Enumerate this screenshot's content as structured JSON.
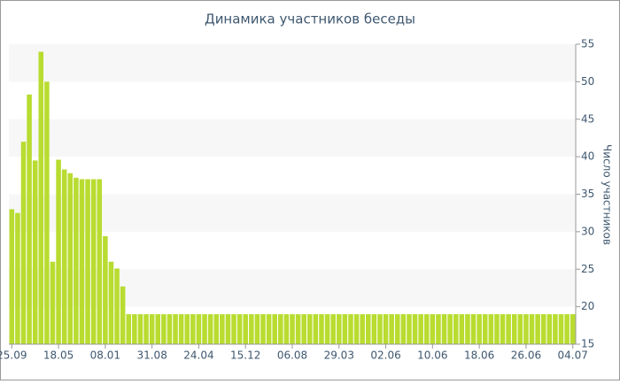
{
  "chart_data": {
    "type": "bar",
    "title": "Динамика участников беседы",
    "y_label": "Число участников",
    "categories": [
      "25.09",
      null,
      null,
      null,
      null,
      null,
      null,
      null,
      "18.05",
      null,
      null,
      null,
      null,
      null,
      null,
      null,
      "08.01",
      null,
      null,
      null,
      null,
      null,
      null,
      null,
      "31.08",
      null,
      null,
      null,
      null,
      null,
      null,
      null,
      "24.04",
      null,
      null,
      null,
      null,
      null,
      null,
      null,
      "15.12",
      null,
      null,
      null,
      null,
      null,
      null,
      null,
      "06.08",
      null,
      null,
      null,
      null,
      null,
      null,
      null,
      "29.03",
      null,
      null,
      null,
      null,
      null,
      null,
      null,
      "02.06",
      null,
      null,
      null,
      null,
      null,
      null,
      null,
      "10.06",
      null,
      null,
      null,
      null,
      null,
      null,
      null,
      "18.06",
      null,
      null,
      null,
      null,
      null,
      null,
      null,
      "26.06",
      null,
      null,
      null,
      null,
      null,
      null,
      null,
      "04.07"
    ],
    "values": [
      33,
      32.5,
      42,
      48.3,
      39.5,
      54,
      50,
      26,
      39.6,
      38.3,
      37.8,
      37.2,
      37,
      37,
      37,
      37,
      29.4,
      26,
      25.1,
      22.7,
      19,
      19,
      19,
      19,
      19,
      19,
      19,
      19,
      19,
      19,
      19,
      19,
      19,
      19,
      19,
      19,
      19,
      19,
      19,
      19,
      19,
      19,
      19,
      19,
      19,
      19,
      19,
      19,
      19,
      19,
      19,
      19,
      19,
      19,
      19,
      19,
      19,
      19,
      19,
      19,
      19,
      19,
      19,
      19,
      19,
      19,
      19,
      19,
      19,
      19,
      19,
      19,
      19,
      19,
      19,
      19,
      19,
      19,
      19,
      19,
      19,
      19,
      19,
      19,
      19,
      19,
      19,
      19,
      19,
      19,
      19,
      19,
      19,
      19,
      19,
      19,
      19
    ],
    "color": "#b8dc30",
    "ylim": [
      15,
      55
    ],
    "yticks": [
      15,
      20,
      25,
      30,
      35,
      40,
      45,
      50,
      55
    ],
    "grid_bands": true
  }
}
